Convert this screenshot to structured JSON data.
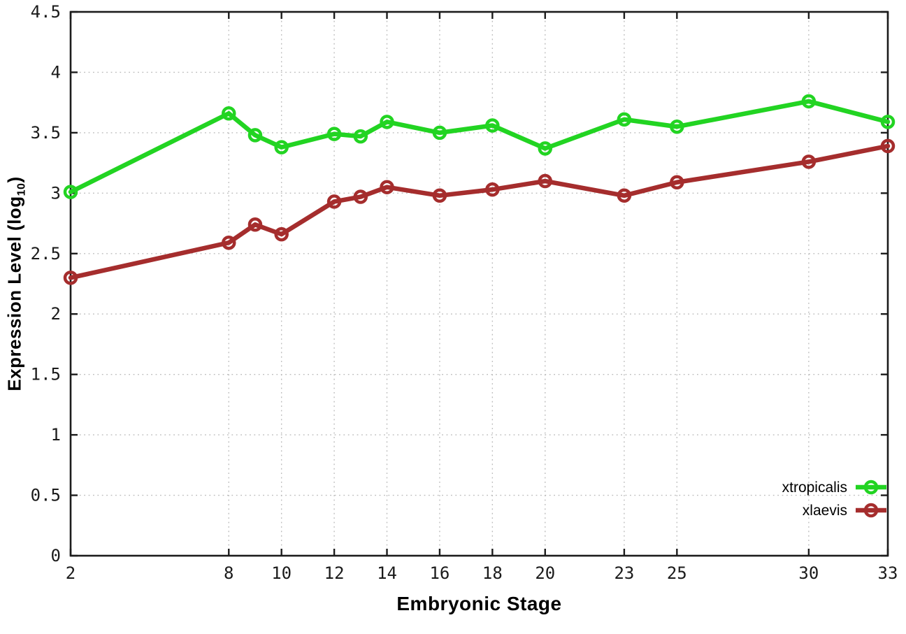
{
  "labels": {
    "ylabel_prefix": "Expression Level (log",
    "ylabel_sub": "10",
    "ylabel_suffix": ")",
    "xlabel": "Embryonic Stage"
  },
  "chart_data": {
    "type": "line",
    "title": "",
    "xlabel": "Embryonic Stage",
    "ylabel": "Expression Level (log10)",
    "x": [
      2,
      8,
      9,
      10,
      12,
      13,
      14,
      16,
      18,
      20,
      23,
      25,
      30,
      33
    ],
    "series": [
      {
        "name": "xtropicalis",
        "color": "#22d422",
        "marker": "open-circle",
        "values": [
          3.01,
          3.66,
          3.48,
          3.38,
          3.49,
          3.47,
          3.59,
          3.5,
          3.56,
          3.37,
          3.61,
          3.55,
          3.76,
          3.59
        ]
      },
      {
        "name": "xlaevis",
        "color": "#a52d2d",
        "marker": "open-circle",
        "values": [
          2.3,
          2.59,
          2.74,
          2.66,
          2.93,
          2.97,
          3.05,
          2.98,
          3.03,
          3.1,
          2.98,
          3.09,
          3.26,
          3.39
        ]
      }
    ],
    "xticks": [
      2,
      8,
      10,
      12,
      14,
      16,
      18,
      20,
      23,
      25,
      30,
      33
    ],
    "yticks": [
      0,
      0.5,
      1,
      1.5,
      2,
      2.5,
      3,
      3.5,
      4,
      4.5
    ],
    "xlim": [
      2,
      33
    ],
    "ylim": [
      0,
      4.5
    ],
    "grid": true,
    "legend_position": "bottom-right",
    "axis_color": "#1c1c1c",
    "grid_color": "#bcbcbc",
    "background": "#ffffff"
  }
}
